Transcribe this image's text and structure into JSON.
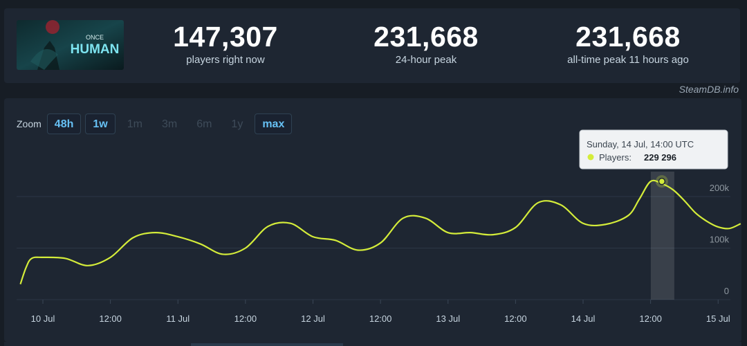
{
  "header": {
    "logo_text_small": "ONCE",
    "logo_text_large": "HUMAN",
    "stats": [
      {
        "value": "147,307",
        "label": "players right now"
      },
      {
        "value": "231,668",
        "label": "24-hour peak"
      },
      {
        "value": "231,668",
        "label": "all-time peak 11 hours ago"
      }
    ],
    "credit": "SteamDB.info"
  },
  "zoom": {
    "label": "Zoom",
    "buttons": [
      {
        "label": "48h",
        "active": true
      },
      {
        "label": "1w",
        "active": true
      },
      {
        "label": "1m",
        "active": false
      },
      {
        "label": "3m",
        "active": false
      },
      {
        "label": "6m",
        "active": false
      },
      {
        "label": "1y",
        "active": false
      },
      {
        "label": "max",
        "active": true
      }
    ]
  },
  "tooltip": {
    "date": "Sunday, 14 Jul, 14:00 UTC",
    "series_label": "Players:",
    "value": "229 296"
  },
  "colors": {
    "line": "#d4ec3a",
    "accent": "#66c0f4",
    "background": "#171d25",
    "panel": "#1e2632"
  },
  "chart_data": {
    "type": "line",
    "x_tick_labels": [
      "10 Jul",
      "12:00",
      "11 Jul",
      "12:00",
      "12 Jul",
      "12:00",
      "13 Jul",
      "12:00",
      "14 Jul",
      "12:00",
      "15 Jul"
    ],
    "y_tick_labels": [
      "0",
      "100k",
      "200k"
    ],
    "ylim": [
      0,
      240000
    ],
    "grid": true,
    "series": [
      {
        "name": "Players",
        "x_hours": [
          -4,
          -3,
          -2,
          0,
          4,
          8,
          12,
          16,
          20,
          24,
          28,
          32,
          36,
          40,
          44,
          48,
          52,
          56,
          60,
          64,
          68,
          72,
          76,
          80,
          84,
          88,
          92,
          96,
          100,
          104,
          106,
          108,
          110,
          112,
          114,
          116,
          118,
          120,
          122,
          124
        ],
        "values": [
          30000,
          62000,
          80000,
          82000,
          80000,
          66000,
          82000,
          120000,
          130000,
          122000,
          108000,
          88000,
          100000,
          142000,
          148000,
          122000,
          115000,
          96000,
          110000,
          158000,
          158000,
          130000,
          130000,
          126000,
          140000,
          188000,
          184000,
          148000,
          146000,
          163000,
          195000,
          229296,
          225000,
          213000,
          192000,
          168000,
          152000,
          141000,
          138000,
          147307
        ]
      }
    ],
    "highlight": {
      "x_hours": 110,
      "value": 229296
    }
  }
}
